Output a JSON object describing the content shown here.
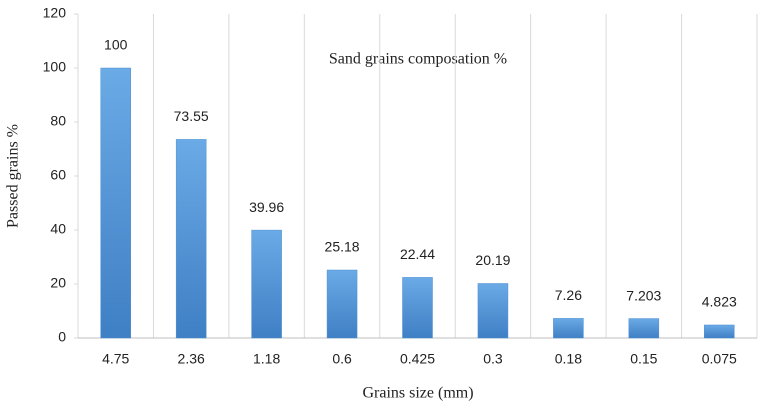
{
  "chart_data": {
    "type": "bar",
    "title": "Sand grains composation %",
    "x_label": "Grains size  (mm)",
    "y_label": "Passed grains %",
    "categories": [
      "4.75",
      "2.36",
      "1.18",
      "0.6",
      "0.425",
      "0.3",
      "0.18",
      "0.15",
      "0.075"
    ],
    "values": [
      100,
      73.55,
      39.96,
      25.18,
      22.44,
      20.19,
      7.26,
      7.203,
      4.823
    ],
    "color": "#4f8fd3",
    "ylim": [
      0,
      120
    ],
    "yticks": [
      0,
      20,
      40,
      60,
      80,
      100,
      120
    ],
    "grid": true
  }
}
